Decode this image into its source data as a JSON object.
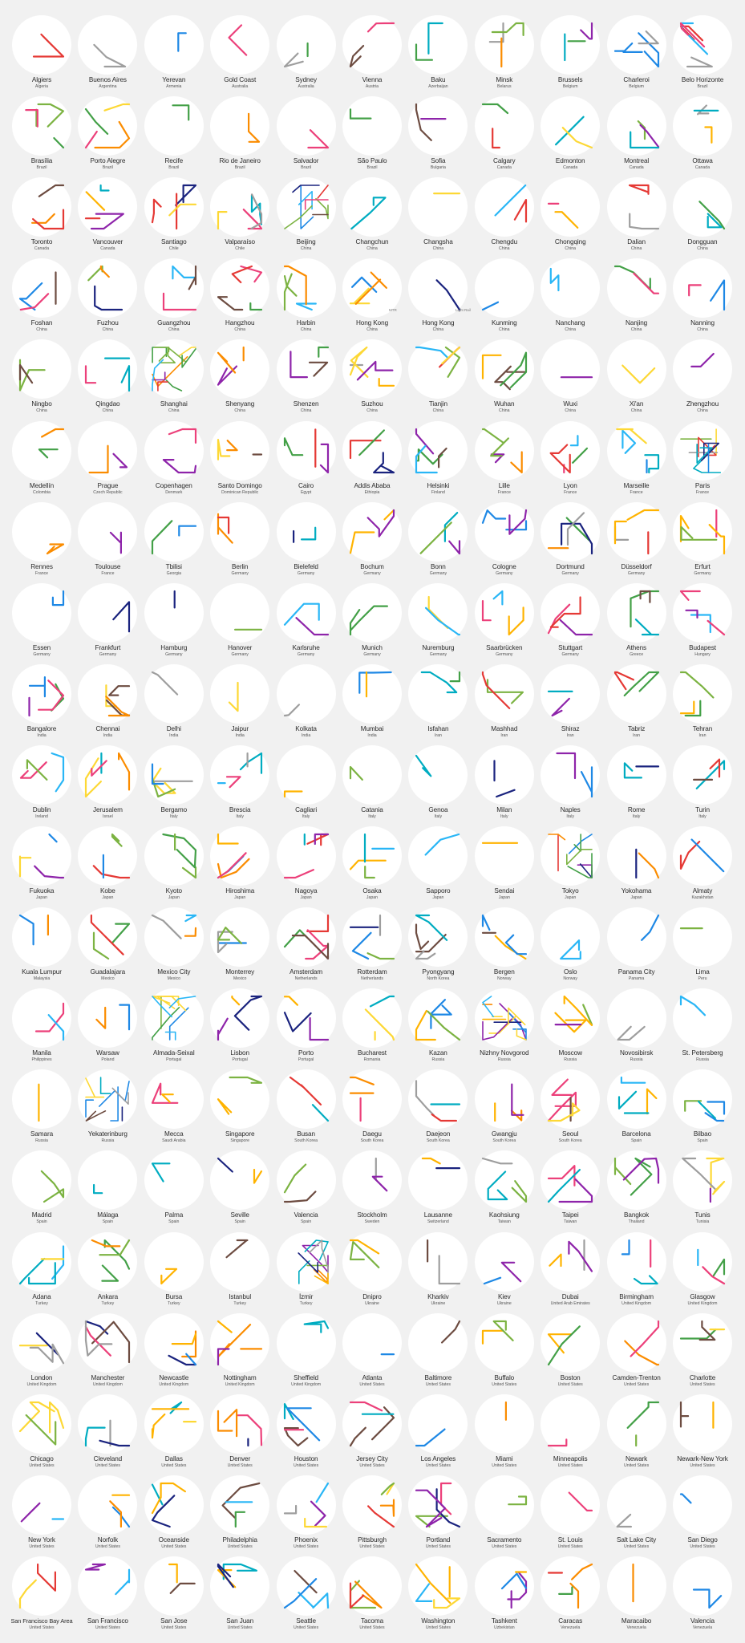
{
  "colors": [
    "#e53935",
    "#1e88e5",
    "#43a047",
    "#fdd835",
    "#fb8c00",
    "#8e24aa",
    "#00acc1",
    "#ec407a",
    "#1a237e",
    "#9e9e9e",
    "#ffb300",
    "#7cb342",
    "#6d4c41",
    "#29b6f6"
  ],
  "annotations": {
    "hong_kong_1": "MTR",
    "hong_kong_2": "Light Rail"
  },
  "cities": [
    [
      "Algiers",
      "Algeria"
    ],
    [
      "Buenos Aires",
      "Argentina"
    ],
    [
      "Yerevan",
      "Armenia"
    ],
    [
      "Gold Coast",
      "Australia"
    ],
    [
      "Sydney",
      "Australia"
    ],
    [
      "Vienna",
      "Austria"
    ],
    [
      "Baku",
      "Azerbaijan"
    ],
    [
      "Minsk",
      "Belarus"
    ],
    [
      "Brussels",
      "Belgium"
    ],
    [
      "Charleroi",
      "Belgium"
    ],
    [
      "Belo Horizonte",
      "Brazil"
    ],
    [
      "Brasília",
      "Brazil"
    ],
    [
      "Porto Alegre",
      "Brazil"
    ],
    [
      "Recife",
      "Brazil"
    ],
    [
      "Rio de Janeiro",
      "Brazil"
    ],
    [
      "Salvador",
      "Brazil"
    ],
    [
      "São Paulo",
      "Brazil"
    ],
    [
      "Sofia",
      "Bulgaria"
    ],
    [
      "Calgary",
      "Canada"
    ],
    [
      "Edmonton",
      "Canada"
    ],
    [
      "Montreal",
      "Canada"
    ],
    [
      "Ottawa",
      "Canada"
    ],
    [
      "Toronto",
      "Canada"
    ],
    [
      "Vancouver",
      "Canada"
    ],
    [
      "Santiago",
      "Chile"
    ],
    [
      "Valparaíso",
      "Chile"
    ],
    [
      "Beijing",
      "China"
    ],
    [
      "Changchun",
      "China"
    ],
    [
      "Changsha",
      "China"
    ],
    [
      "Chengdu",
      "China"
    ],
    [
      "Chongqing",
      "China"
    ],
    [
      "Dalian",
      "China"
    ],
    [
      "Dongguan",
      "China"
    ],
    [
      "Foshan",
      "China"
    ],
    [
      "Fuzhou",
      "China"
    ],
    [
      "Guangzhou",
      "China"
    ],
    [
      "Hangzhou",
      "China"
    ],
    [
      "Harbin",
      "China"
    ],
    [
      "Hong Kong",
      "China"
    ],
    [
      "Hong Kong",
      "China"
    ],
    [
      "Kunming",
      "China"
    ],
    [
      "Nanchang",
      "China"
    ],
    [
      "Nanjing",
      "China"
    ],
    [
      "Nanning",
      "China"
    ],
    [
      "Ningbo",
      "China"
    ],
    [
      "Qingdao",
      "China"
    ],
    [
      "Shanghai",
      "China"
    ],
    [
      "Shenyang",
      "China"
    ],
    [
      "Shenzen",
      "China"
    ],
    [
      "Suzhou",
      "China"
    ],
    [
      "Tianjin",
      "China"
    ],
    [
      "Wuhan",
      "China"
    ],
    [
      "Wuxi",
      "China"
    ],
    [
      "Xi'an",
      "China"
    ],
    [
      "Zhengzhou",
      "China"
    ],
    [
      "Medellín",
      "Colombia"
    ],
    [
      "Prague",
      "Czech Republic"
    ],
    [
      "Copenhagen",
      "Denmark"
    ],
    [
      "Santo Domingo",
      "Dominican Republic"
    ],
    [
      "Cairo",
      "Egypt"
    ],
    [
      "Addis Ababa",
      "Ethiopia"
    ],
    [
      "Helsinki",
      "Finland"
    ],
    [
      "Lille",
      "France"
    ],
    [
      "Lyon",
      "France"
    ],
    [
      "Marseille",
      "France"
    ],
    [
      "Paris",
      "France"
    ],
    [
      "Rennes",
      "France"
    ],
    [
      "Toulouse",
      "France"
    ],
    [
      "Tbilisi",
      "Georgia"
    ],
    [
      "Berlin",
      "Germany"
    ],
    [
      "Bielefeld",
      "Germany"
    ],
    [
      "Bochum",
      "Germany"
    ],
    [
      "Bonn",
      "Germany"
    ],
    [
      "Cologne",
      "Germany"
    ],
    [
      "Dortmund",
      "Germany"
    ],
    [
      "Düsseldorf",
      "Germany"
    ],
    [
      "Erfurt",
      "Germany"
    ],
    [
      "Essen",
      "Germany"
    ],
    [
      "Frankfurt",
      "Germany"
    ],
    [
      "Hamburg",
      "Germany"
    ],
    [
      "Hanover",
      "Germany"
    ],
    [
      "Karlsruhe",
      "Germany"
    ],
    [
      "Munich",
      "Germany"
    ],
    [
      "Nuremburg",
      "Germany"
    ],
    [
      "Saarbrücken",
      "Germany"
    ],
    [
      "Stuttgart",
      "Germany"
    ],
    [
      "Athens",
      "Greece"
    ],
    [
      "Budapest",
      "Hungary"
    ],
    [
      "Bangalore",
      "India"
    ],
    [
      "Chennai",
      "India"
    ],
    [
      "Delhi",
      "India"
    ],
    [
      "Jaipur",
      "India"
    ],
    [
      "Kolkata",
      "India"
    ],
    [
      "Mumbai",
      "India"
    ],
    [
      "Isfahan",
      "Iran"
    ],
    [
      "Mashhad",
      "Iran"
    ],
    [
      "Shiraz",
      "Iran"
    ],
    [
      "Tabriz",
      "Iran"
    ],
    [
      "Tehran",
      "Iran"
    ],
    [
      "Dublin",
      "Ireland"
    ],
    [
      "Jerusalem",
      "Israel"
    ],
    [
      "Bergamo",
      "Italy"
    ],
    [
      "Brescia",
      "Italy"
    ],
    [
      "Cagliari",
      "Italy"
    ],
    [
      "Catania",
      "Italy"
    ],
    [
      "Genoa",
      "Italy"
    ],
    [
      "Milan",
      "Italy"
    ],
    [
      "Naples",
      "Italy"
    ],
    [
      "Rome",
      "Italy"
    ],
    [
      "Turin",
      "Italy"
    ],
    [
      "Fukuoka",
      "Japan"
    ],
    [
      "Kobe",
      "Japan"
    ],
    [
      "Kyoto",
      "Japan"
    ],
    [
      "Hiroshima",
      "Japan"
    ],
    [
      "Nagoya",
      "Japan"
    ],
    [
      "Osaka",
      "Japan"
    ],
    [
      "Sapporo",
      "Japan"
    ],
    [
      "Sendai",
      "Japan"
    ],
    [
      "Tokyo",
      "Japan"
    ],
    [
      "Yokohama",
      "Japan"
    ],
    [
      "Almaty",
      "Kazakhstan"
    ],
    [
      "Kuala Lumpur",
      "Malaysia"
    ],
    [
      "Guadalajara",
      "Mexico"
    ],
    [
      "Mexico City",
      "Mexico"
    ],
    [
      "Monterrey",
      "Mexico"
    ],
    [
      "Amsterdam",
      "Netherlands"
    ],
    [
      "Rotterdam",
      "Netherlands"
    ],
    [
      "Pyongyang",
      "North Korea"
    ],
    [
      "Bergen",
      "Norway"
    ],
    [
      "Oslo",
      "Norway"
    ],
    [
      "Panama City",
      "Panama"
    ],
    [
      "Lima",
      "Peru"
    ],
    [
      "Manila",
      "Philippines"
    ],
    [
      "Warsaw",
      "Poland"
    ],
    [
      "Almada-Seixal",
      "Portugal"
    ],
    [
      "Lisbon",
      "Portugal"
    ],
    [
      "Porto",
      "Portugal"
    ],
    [
      "Bucharest",
      "Romania"
    ],
    [
      "Kazan",
      "Russia"
    ],
    [
      "Nizhny Novgorod",
      "Russia"
    ],
    [
      "Moscow",
      "Russia"
    ],
    [
      "Novosibirsk",
      "Russia"
    ],
    [
      "St. Petersberg",
      "Russia"
    ],
    [
      "Samara",
      "Russia"
    ],
    [
      "Yekaterinburg",
      "Russia"
    ],
    [
      "Mecca",
      "Saudi Arabia"
    ],
    [
      "Singapore",
      "Singapore"
    ],
    [
      "Busan",
      "South Korea"
    ],
    [
      "Daegu",
      "South Korea"
    ],
    [
      "Daejeon",
      "South Korea"
    ],
    [
      "Gwangju",
      "South Korea"
    ],
    [
      "Seoul",
      "South Korea"
    ],
    [
      "Barcelona",
      "Spain"
    ],
    [
      "Bilbao",
      "Spain"
    ],
    [
      "Madrid",
      "Spain"
    ],
    [
      "Málaga",
      "Spain"
    ],
    [
      "Palma",
      "Spain"
    ],
    [
      "Seville",
      "Spain"
    ],
    [
      "Valencia",
      "Spain"
    ],
    [
      "Stockholm",
      "Sweden"
    ],
    [
      "Lausanne",
      "Switzerland"
    ],
    [
      "Kaohsiung",
      "Taiwan"
    ],
    [
      "Taipei",
      "Taiwan"
    ],
    [
      "Bangkok",
      "Thailand"
    ],
    [
      "Tunis",
      "Tunisia"
    ],
    [
      "Adana",
      "Turkey"
    ],
    [
      "Ankara",
      "Turkey"
    ],
    [
      "Bursa",
      "Turkey"
    ],
    [
      "Istanbul",
      "Turkey"
    ],
    [
      "İzmir",
      "Turkey"
    ],
    [
      "Dnipro",
      "Ukraine"
    ],
    [
      "Kharkiv",
      "Ukraine"
    ],
    [
      "Kiev",
      "Ukraine"
    ],
    [
      "Dubai",
      "United Arab Emirates"
    ],
    [
      "Birmingham",
      "United Kingdom"
    ],
    [
      "Glasgow",
      "United Kingdom"
    ],
    [
      "London",
      "United Kingdom"
    ],
    [
      "Manchester",
      "United Kingdom"
    ],
    [
      "Newcastle",
      "United Kingdom"
    ],
    [
      "Nottingham",
      "United Kingdom"
    ],
    [
      "Sheffield",
      "United Kingdom"
    ],
    [
      "Atlanta",
      "United States"
    ],
    [
      "Baltimore",
      "United States"
    ],
    [
      "Buffalo",
      "United States"
    ],
    [
      "Boston",
      "United States"
    ],
    [
      "Camden-Trenton",
      "United States"
    ],
    [
      "Charlotte",
      "United States"
    ],
    [
      "Chicago",
      "United States"
    ],
    [
      "Cleveland",
      "United States"
    ],
    [
      "Dallas",
      "United States"
    ],
    [
      "Denver",
      "United States"
    ],
    [
      "Houston",
      "United States"
    ],
    [
      "Jersey City",
      "United States"
    ],
    [
      "Los Angeles",
      "United States"
    ],
    [
      "Miami",
      "United States"
    ],
    [
      "Minneapolis",
      "United States"
    ],
    [
      "Newark",
      "United States"
    ],
    [
      "Newark-New York",
      "United States"
    ],
    [
      "New York",
      "United States"
    ],
    [
      "Norfolk",
      "United States"
    ],
    [
      "Oceanside",
      "United States"
    ],
    [
      "Philadelphia",
      "United States"
    ],
    [
      "Phoenix",
      "United States"
    ],
    [
      "Pittsburgh",
      "United States"
    ],
    [
      "Portland",
      "United States"
    ],
    [
      "Sacramento",
      "United States"
    ],
    [
      "St. Louis",
      "United States"
    ],
    [
      "Salt Lake City",
      "United States"
    ],
    [
      "San Diego",
      "United States"
    ],
    [
      "San Francisco Bay Area",
      "United States"
    ],
    [
      "San Francisco",
      "United States"
    ],
    [
      "San Jose",
      "United States"
    ],
    [
      "San Juan",
      "United States"
    ],
    [
      "Seattle",
      "United States"
    ],
    [
      "Tacoma",
      "United States"
    ],
    [
      "Washington",
      "United States"
    ],
    [
      "Tashkent",
      "Uzbekistan"
    ],
    [
      "Caracas",
      "Venezuela"
    ],
    [
      "Maracaibo",
      "Venezuela"
    ],
    [
      "Valencia",
      "Venezuela"
    ]
  ]
}
